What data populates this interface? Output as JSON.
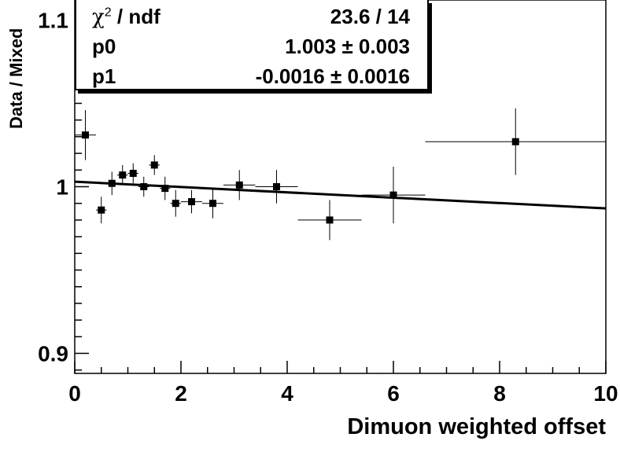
{
  "chart_data": {
    "type": "scatter",
    "xlabel": "Dimuon weighted offset",
    "ylabel": "Data / Mixed",
    "xlim": [
      0,
      10
    ],
    "ylim": [
      0.888,
      1.112
    ],
    "x_ticks": [
      0,
      2,
      4,
      6,
      8,
      10
    ],
    "y_ticks": [
      0.9,
      1,
      1.1
    ],
    "grid": false,
    "points": [
      {
        "x": 0.2,
        "y": 1.031,
        "xerr": 0.2,
        "yerr": 0.015
      },
      {
        "x": 0.5,
        "y": 0.986,
        "xerr": 0.1,
        "yerr": 0.008
      },
      {
        "x": 0.7,
        "y": 1.002,
        "xerr": 0.1,
        "yerr": 0.007
      },
      {
        "x": 0.9,
        "y": 1.007,
        "xerr": 0.1,
        "yerr": 0.006
      },
      {
        "x": 1.1,
        "y": 1.008,
        "xerr": 0.1,
        "yerr": 0.006
      },
      {
        "x": 1.3,
        "y": 1.0,
        "xerr": 0.1,
        "yerr": 0.006
      },
      {
        "x": 1.5,
        "y": 1.013,
        "xerr": 0.1,
        "yerr": 0.006
      },
      {
        "x": 1.7,
        "y": 0.999,
        "xerr": 0.1,
        "yerr": 0.007
      },
      {
        "x": 1.9,
        "y": 0.99,
        "xerr": 0.1,
        "yerr": 0.008
      },
      {
        "x": 2.2,
        "y": 0.991,
        "xerr": 0.2,
        "yerr": 0.007
      },
      {
        "x": 2.6,
        "y": 0.99,
        "xerr": 0.2,
        "yerr": 0.009
      },
      {
        "x": 3.1,
        "y": 1.001,
        "xerr": 0.3,
        "yerr": 0.009
      },
      {
        "x": 3.8,
        "y": 1.0,
        "xerr": 0.4,
        "yerr": 0.01
      },
      {
        "x": 4.8,
        "y": 0.98,
        "xerr": 0.6,
        "yerr": 0.012
      },
      {
        "x": 6.0,
        "y": 0.995,
        "xerr": 0.6,
        "yerr": 0.017
      },
      {
        "x": 8.3,
        "y": 1.027,
        "xerr": 1.7,
        "yerr": 0.02
      }
    ],
    "fit": {
      "type": "linear",
      "p0": 1.003,
      "p1": -0.0016
    }
  },
  "stats_box": {
    "rows": [
      {
        "name_symbol": "χ",
        "name_sup": "2",
        "name_rest": " / ndf",
        "value": "23.6 / 14"
      },
      {
        "name": "p0",
        "value": "1.003 ± 0.003"
      },
      {
        "name": "p1",
        "value": "-0.0016 ± 0.0016"
      }
    ]
  },
  "colors": {
    "markers": "#000000",
    "fit_line": "#000000",
    "background": "#ffffff"
  }
}
